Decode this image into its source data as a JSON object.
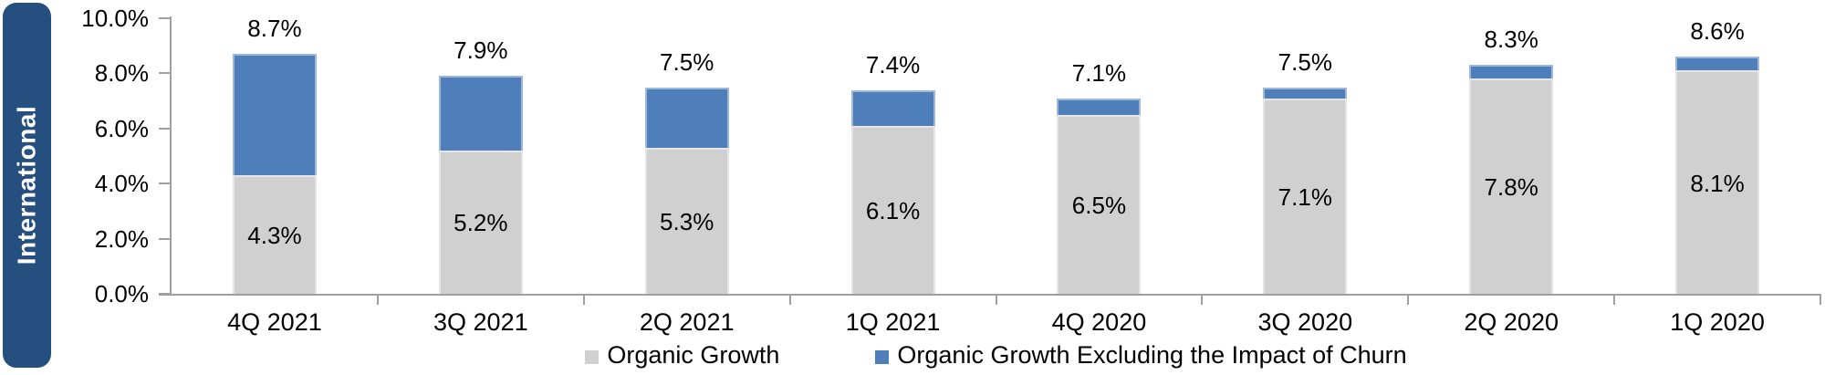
{
  "sidebar": {
    "label": "International",
    "bg_color": "#254F7E",
    "text_color": "#FFFFFF"
  },
  "chart_data": {
    "type": "bar",
    "stacked": true,
    "categories": [
      "4Q 2021",
      "3Q 2021",
      "2Q 2021",
      "1Q 2021",
      "4Q 2020",
      "3Q 2020",
      "2Q 2020",
      "1Q 2020"
    ],
    "series": [
      {
        "name": "Organic Growth",
        "color": "#D1D0D0",
        "values": [
          4.3,
          5.2,
          5.3,
          6.1,
          6.5,
          7.1,
          7.8,
          8.1
        ],
        "label_position": "inside"
      },
      {
        "name": "Organic Growth Excluding the Impact of Churn",
        "color": "#4E7FBB",
        "values": [
          8.7,
          7.9,
          7.5,
          7.4,
          7.1,
          7.5,
          8.3,
          8.6
        ],
        "label_position": "above"
      }
    ],
    "ylim": [
      0,
      10
    ],
    "y_tick_values": [
      0,
      2,
      4,
      6,
      8,
      10
    ],
    "y_tick_labels": [
      "0.0%",
      "2.0%",
      "4.0%",
      "6.0%",
      "8.0%",
      "10.0%"
    ],
    "value_suffix": "%",
    "grid": false,
    "legend_position": "bottom-center",
    "axis_color": "#A0A0A0",
    "text_color": "#000000"
  }
}
